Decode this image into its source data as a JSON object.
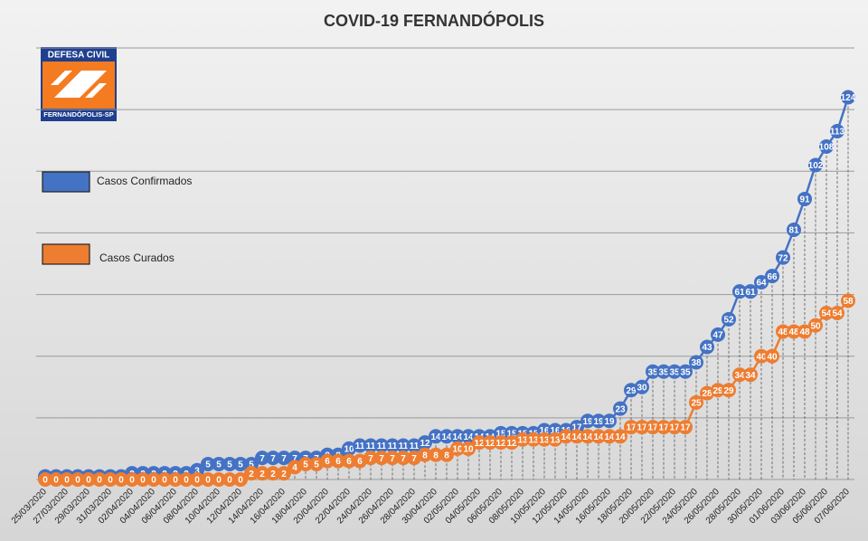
{
  "logo": {
    "top": "DEFESA CIVIL",
    "bottom": "FERNANDÓPOLIS-SP"
  },
  "chart_data": {
    "type": "line",
    "title": "COVID-19 FERNANDÓPOLIS",
    "categories": [
      "25/03/2020",
      null,
      "27/03/2020",
      null,
      "29/03/2020",
      null,
      "31/03/2020",
      null,
      "02/04/2020",
      null,
      "04/04/2020",
      null,
      "06/04/2020",
      null,
      "08/04/2020",
      null,
      "10/04/2020",
      null,
      "12/04/2020",
      null,
      "14/04/2020",
      null,
      "16/04/2020",
      null,
      "18/04/2020",
      null,
      "20/04/2020",
      null,
      "22/04/2020",
      null,
      "24/04/2020",
      null,
      "26/04/2020",
      null,
      "28/04/2020",
      null,
      "30/04/2020",
      null,
      "02/05/2020",
      null,
      "04/05/2020",
      null,
      "06/05/2020",
      null,
      "08/05/2020",
      null,
      "10/05/2020",
      null,
      "12/05/2020",
      null,
      "14/05/2020",
      null,
      "16/05/2020",
      null,
      "18/05/2020",
      null,
      "20/05/2020",
      null,
      "22/05/2020",
      null,
      "24/05/2020",
      null,
      "26/05/2020",
      null,
      "28/05/2020",
      null,
      "30/05/2020",
      null,
      "01/06/2020",
      null,
      "03/06/2020",
      null,
      "05/06/2020",
      null,
      "07/06/2020"
    ],
    "series": [
      {
        "name": "Casos Confirmados",
        "color": "#4472c4",
        "values": [
          1,
          1,
          1,
          1,
          1,
          1,
          1,
          1,
          2,
          2,
          2,
          2,
          2,
          2,
          3,
          5,
          5,
          5,
          5,
          5,
          7,
          7,
          7,
          7,
          7,
          7,
          8,
          8,
          10,
          11,
          11,
          11,
          11,
          11,
          11,
          12,
          14,
          14,
          14,
          14,
          14,
          14,
          15,
          15,
          15,
          15,
          16,
          16,
          16,
          17,
          19,
          19,
          19,
          23,
          29,
          30,
          35,
          35,
          35,
          35,
          38,
          43,
          47,
          52,
          61,
          61,
          64,
          66,
          72,
          81,
          91,
          102,
          108,
          113,
          124
        ]
      },
      {
        "name": "Casos Curados",
        "color": "#ed7d31",
        "values": [
          0,
          0,
          0,
          0,
          0,
          0,
          0,
          0,
          0,
          0,
          0,
          0,
          0,
          0,
          0,
          0,
          0,
          0,
          0,
          2,
          2,
          2,
          2,
          4,
          5,
          5,
          6,
          6,
          6,
          6,
          7,
          7,
          7,
          7,
          7,
          8,
          8,
          8,
          10,
          10,
          12,
          12,
          12,
          12,
          13,
          13,
          13,
          13,
          14,
          14,
          14,
          14,
          14,
          14,
          17,
          17,
          17,
          17,
          17,
          17,
          25,
          28,
          29,
          29,
          34,
          34,
          40,
          40,
          48,
          48,
          48,
          50,
          54,
          54,
          58
        ]
      }
    ],
    "ylim": [
      0,
      140
    ],
    "yticks": [
      0,
      20,
      40,
      60,
      80,
      100,
      120,
      140
    ],
    "grid": true
  }
}
